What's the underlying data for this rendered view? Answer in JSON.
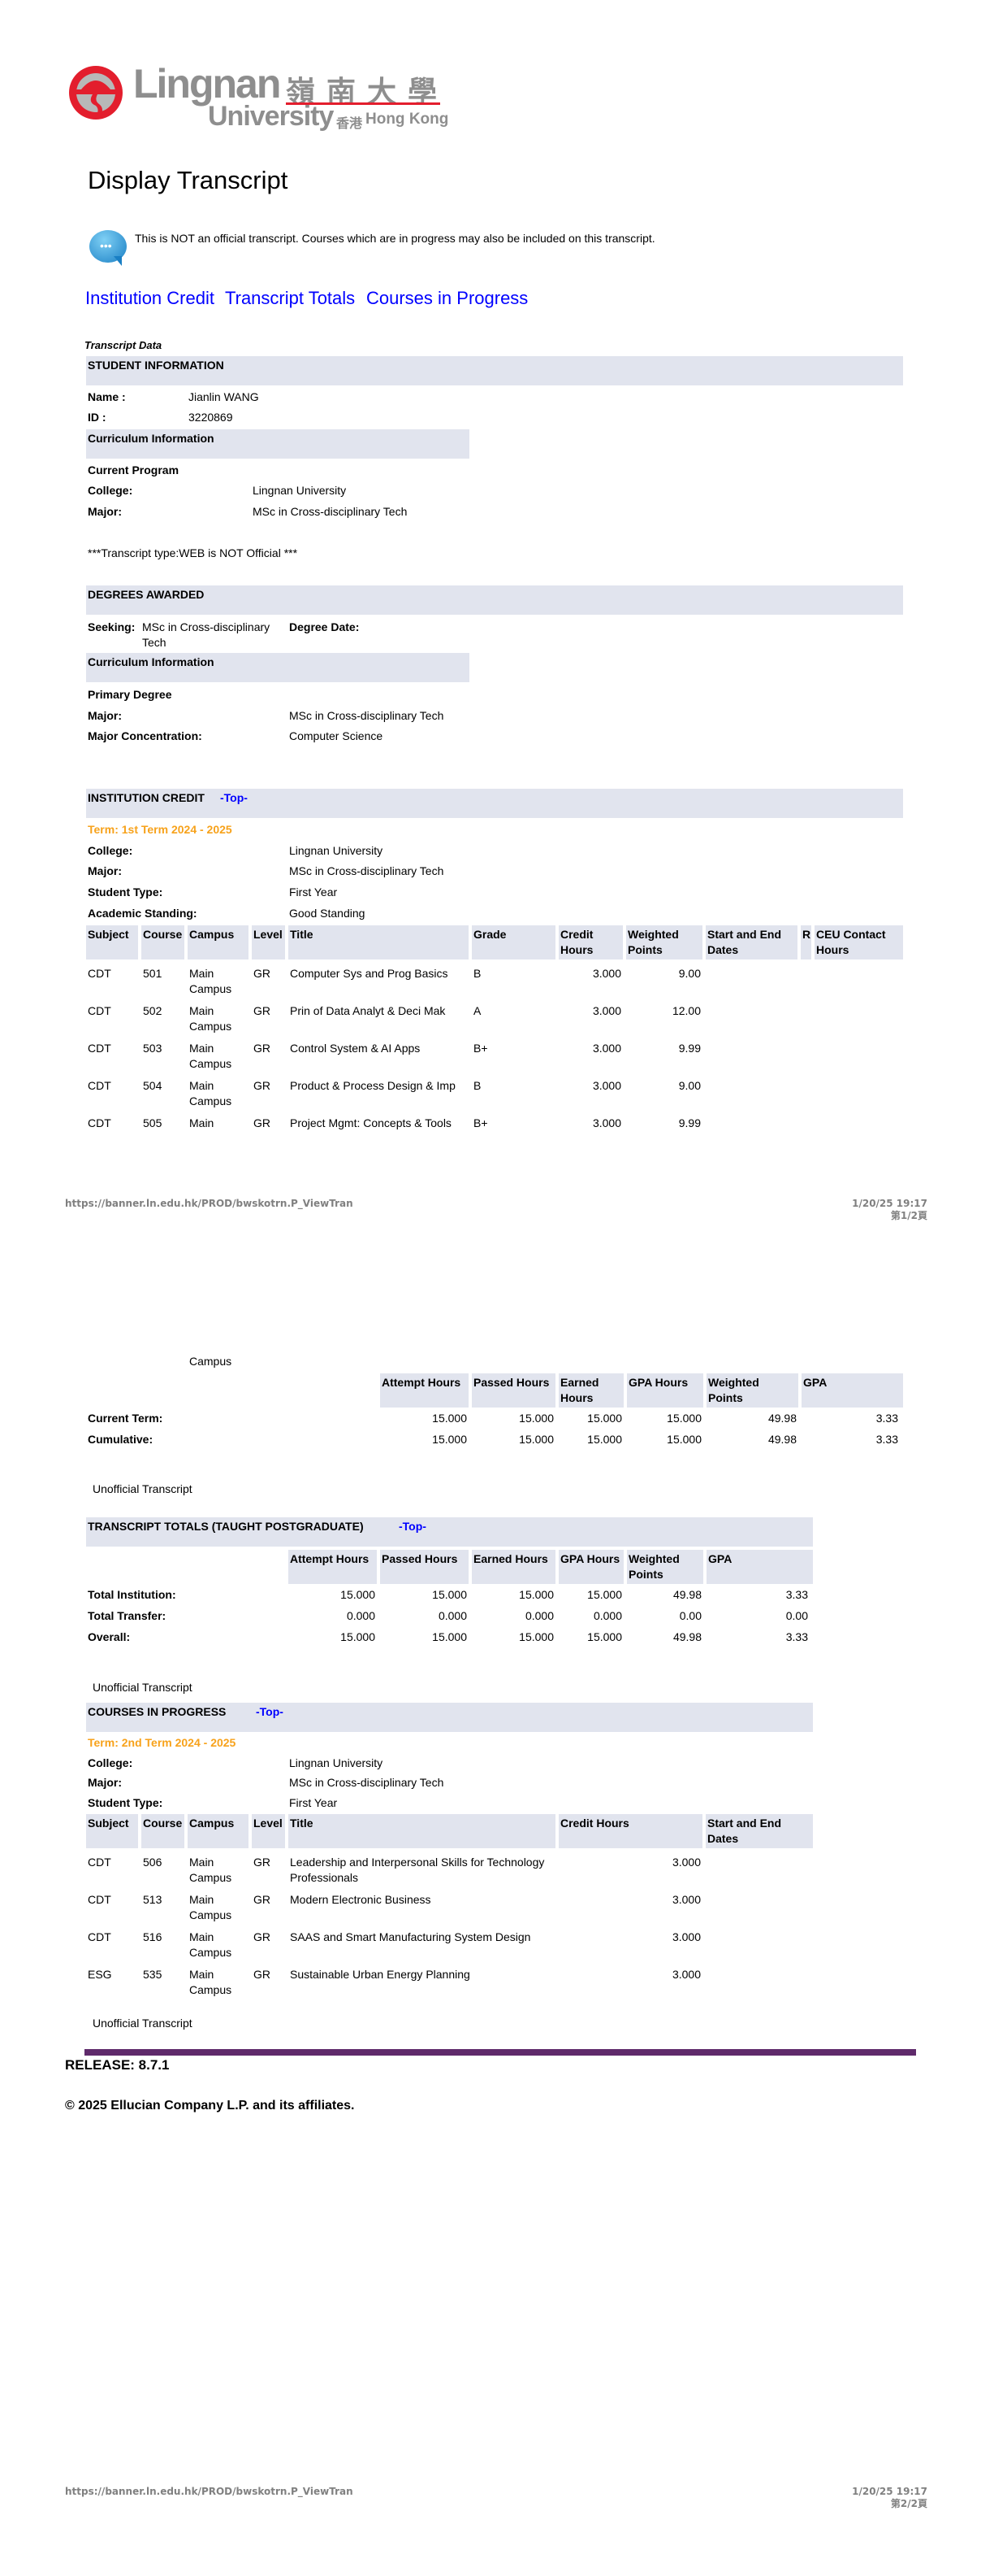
{
  "logo": {
    "name": "Lingnan",
    "chinese": "嶺南大學",
    "sub": "University",
    "sub_chinese": "香港",
    "sub_place": "Hong Kong"
  },
  "page_title": "Display Transcript",
  "notice": "This is NOT an official transcript. Courses which are in progress may also be included on this transcript.",
  "nav_links": [
    "Institution Credit",
    "Transcript Totals",
    "Courses in Progress"
  ],
  "transcript_data_label": "Transcript Data",
  "student_info": {
    "header": "STUDENT INFORMATION",
    "name_label": "Name :",
    "name": "Jianlin WANG",
    "id_label": "ID :",
    "id": "3220869",
    "curriculum_header": "Curriculum Information",
    "current_program": "Current Program",
    "college_label": "College:",
    "college": "Lingnan University",
    "major_label": "Major:",
    "major": "MSc in Cross-disciplinary Tech",
    "transcript_type": "***Transcript type:WEB is NOT Official ***"
  },
  "degrees": {
    "header": "DEGREES AWARDED",
    "seeking_label": "Seeking:",
    "seeking_1": "MSc in Cross-disciplinary",
    "seeking_2": "Tech",
    "degree_date_label": "Degree Date:",
    "curriculum_header": "Curriculum Information",
    "primary_degree": "Primary Degree",
    "major_label": "Major:",
    "major": "MSc in Cross-disciplinary Tech",
    "concentration_label": "Major Concentration:",
    "concentration": "Computer Science"
  },
  "top_link": "-Top-",
  "institution_credit": {
    "header": "INSTITUTION CREDIT",
    "term": "Term: 1st Term 2024 - 2025",
    "college_label": "College:",
    "college": "Lingnan University",
    "major_label": "Major:",
    "major": "MSc in Cross-disciplinary Tech",
    "student_type_label": "Student Type:",
    "student_type": "First Year",
    "standing_label": "Academic Standing:",
    "standing": "Good Standing",
    "columns": [
      "Subject",
      "Course",
      "Campus",
      "Level",
      "Title",
      "Grade",
      "Credit Hours",
      "Weighted Points",
      "Start and End Dates",
      "R",
      "CEU Contact Hours"
    ],
    "rows": [
      [
        "CDT",
        "501",
        "Main Campus",
        "GR",
        "Computer Sys and Prog Basics",
        "B",
        "3.000",
        "9.00",
        "",
        "",
        ""
      ],
      [
        "CDT",
        "502",
        "Main Campus",
        "GR",
        "Prin of Data Analyt & Deci Mak",
        "A",
        "3.000",
        "12.00",
        "",
        "",
        ""
      ],
      [
        "CDT",
        "503",
        "Main Campus",
        "GR",
        "Control System & AI Apps",
        "B+",
        "3.000",
        "9.99",
        "",
        "",
        ""
      ],
      [
        "CDT",
        "504",
        "Main Campus",
        "GR",
        "Product & Process Design & Imp",
        "B",
        "3.000",
        "9.00",
        "",
        "",
        ""
      ],
      [
        "CDT",
        "505",
        "Main",
        "GR",
        "Project Mgmt: Concepts & Tools",
        "B+",
        "3.000",
        "9.99",
        "",
        "",
        ""
      ]
    ],
    "row_continuation": "Campus",
    "gpa_columns": [
      "Attempt Hours",
      "Passed Hours",
      "Earned Hours",
      "GPA Hours",
      "Weighted Points",
      "GPA"
    ],
    "gpa_rows": [
      [
        "Current Term:",
        "15.000",
        "15.000",
        "15.000",
        "15.000",
        "49.98",
        "3.33"
      ],
      [
        "Cumulative:",
        "15.000",
        "15.000",
        "15.000",
        "15.000",
        "49.98",
        "3.33"
      ]
    ]
  },
  "unofficial": "Unofficial Transcript",
  "transcript_totals": {
    "header": "TRANSCRIPT TOTALS (TAUGHT POSTGRADUATE)",
    "columns": [
      "Attempt Hours",
      "Passed Hours",
      "Earned Hours",
      "GPA Hours",
      "Weighted Points",
      "GPA"
    ],
    "rows": [
      [
        "Total Institution:",
        "15.000",
        "15.000",
        "15.000",
        "15.000",
        "49.98",
        "3.33"
      ],
      [
        "Total Transfer:",
        "0.000",
        "0.000",
        "0.000",
        "0.000",
        "0.00",
        "0.00"
      ],
      [
        "Overall:",
        "15.000",
        "15.000",
        "15.000",
        "15.000",
        "49.98",
        "3.33"
      ]
    ]
  },
  "in_progress": {
    "header": "COURSES IN PROGRESS",
    "term": "Term: 2nd Term 2024 - 2025",
    "college_label": "College:",
    "college": "Lingnan University",
    "major_label": "Major:",
    "major": "MSc in Cross-disciplinary Tech",
    "student_type_label": "Student Type:",
    "student_type": "First Year",
    "columns": [
      "Subject",
      "Course",
      "Campus",
      "Level",
      "Title",
      "Credit Hours",
      "Start and End Dates"
    ],
    "rows": [
      [
        "CDT",
        "506",
        "Main Campus",
        "GR",
        "Leadership and Interpersonal Skills for Technology Professionals",
        "3.000",
        ""
      ],
      [
        "CDT",
        "513",
        "Main Campus",
        "GR",
        "Modern Electronic Business",
        "3.000",
        ""
      ],
      [
        "CDT",
        "516",
        "Main Campus",
        "GR",
        "SAAS and Smart Manufacturing System Design",
        "3.000",
        ""
      ],
      [
        "ESG",
        "535",
        "Main Campus",
        "GR",
        "Sustainable Urban Energy Planning",
        "3.000",
        ""
      ]
    ]
  },
  "release": "RELEASE: 8.7.1",
  "copyright": "© 2025 Ellucian Company L.P. and its affiliates.",
  "print_footer": {
    "url": "https://banner.ln.edu.hk/PROD/bwskotrn.P_ViewTran",
    "datetime": "1/20/25 19:17",
    "page1": "第1/2頁",
    "page2": "第2/2頁"
  },
  "colors": {
    "header_bg": "#e1e4ee",
    "term": "#f7a21b",
    "link": "#0000ff",
    "rule": "#5f2a6b",
    "logo_red": "#e31e2d"
  }
}
